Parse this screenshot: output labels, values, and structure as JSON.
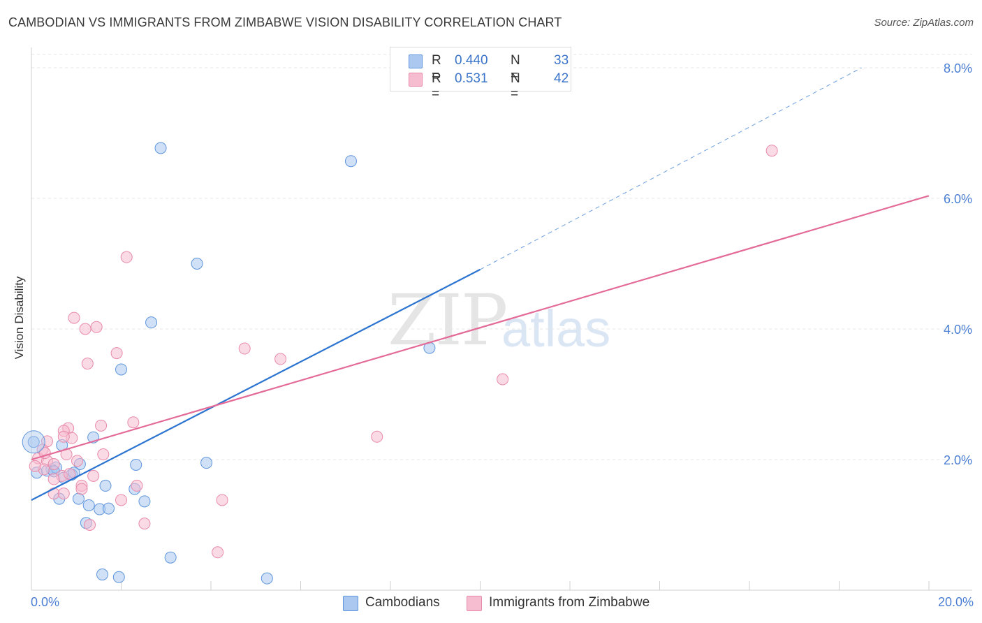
{
  "title": "CAMBODIAN VS IMMIGRANTS FROM ZIMBABWE VISION DISABILITY CORRELATION CHART",
  "source": "Source: ZipAtlas.com",
  "watermark": {
    "zip": "ZIP",
    "atlas": "atlas"
  },
  "legend": {
    "rows": [
      {
        "r_label": "R =",
        "r_value": "0.440",
        "n_label": "N =",
        "n_value": "33",
        "color": "#aac8f0"
      },
      {
        "r_label": "R =",
        "r_value": "0.531",
        "n_label": "N =",
        "n_value": "42",
        "color": "#f6bcd0"
      }
    ]
  },
  "bottom_legend": [
    "Cambodians",
    "Immigrants from Zimbabwe"
  ],
  "x_tick_labels": {
    "min": "0.0%",
    "max": "20.0%"
  },
  "chart_data": {
    "type": "scatter",
    "title": "CAMBODIAN VS IMMIGRANTS FROM ZIMBABWE VISION DISABILITY CORRELATION CHART",
    "xlabel": "",
    "ylabel": "Vision Disability",
    "xlim": [
      0,
      20
    ],
    "ylim": [
      0,
      8.0
    ],
    "y_ticks": [
      {
        "value": 2,
        "label": "2.0%"
      },
      {
        "value": 4,
        "label": "4.0%"
      },
      {
        "value": 6,
        "label": "6.0%"
      },
      {
        "value": 8,
        "label": "8.0%"
      }
    ],
    "grid": true,
    "legend_position": "top-center",
    "series": [
      {
        "name": "Cambodians",
        "color": "#aac8f0",
        "stroke": "#5f95dc",
        "trend_color": "#2b74d1",
        "trend": {
          "x0": 0,
          "y0": 1.38,
          "x1": 10,
          "y1": 4.91,
          "dashed_to_x": 18.5,
          "dashed_to_y": 8.0
        },
        "points": [
          [
            2.88,
            6.77
          ],
          [
            7.12,
            6.57
          ],
          [
            3.69,
            5.0
          ],
          [
            2.67,
            4.1
          ],
          [
            8.87,
            3.71
          ],
          [
            2.0,
            3.38
          ],
          [
            0.68,
            2.22
          ],
          [
            1.38,
            2.34
          ],
          [
            3.9,
            1.95
          ],
          [
            2.33,
            1.92
          ],
          [
            1.08,
            1.93
          ],
          [
            0.12,
            1.8
          ],
          [
            0.45,
            1.85
          ],
          [
            0.35,
            1.83
          ],
          [
            0.55,
            1.88
          ],
          [
            0.72,
            1.72
          ],
          [
            0.9,
            1.77
          ],
          [
            0.95,
            1.8
          ],
          [
            1.65,
            1.6
          ],
          [
            2.3,
            1.55
          ],
          [
            0.62,
            1.4
          ],
          [
            1.05,
            1.4
          ],
          [
            2.52,
            1.36
          ],
          [
            1.28,
            1.3
          ],
          [
            1.52,
            1.24
          ],
          [
            1.72,
            1.25
          ],
          [
            1.22,
            1.03
          ],
          [
            3.1,
            0.5
          ],
          [
            1.58,
            0.24
          ],
          [
            1.95,
            0.2
          ],
          [
            5.25,
            0.18
          ],
          [
            0.05,
            2.27
          ],
          [
            0.5,
            1.82
          ]
        ]
      },
      {
        "name": "Immigrants from Zimbabwe",
        "color": "#f6bcd0",
        "stroke": "#e98aab",
        "trend_color": "#e46b97",
        "trend": {
          "x0": 0,
          "y0": 2.0,
          "x1": 20,
          "y1": 6.04
        },
        "points": [
          [
            16.5,
            6.73
          ],
          [
            2.12,
            5.1
          ],
          [
            0.95,
            4.17
          ],
          [
            1.45,
            4.03
          ],
          [
            1.2,
            4.0
          ],
          [
            4.75,
            3.7
          ],
          [
            1.9,
            3.63
          ],
          [
            5.55,
            3.54
          ],
          [
            1.25,
            3.47
          ],
          [
            10.5,
            3.23
          ],
          [
            2.27,
            2.57
          ],
          [
            1.55,
            2.52
          ],
          [
            0.82,
            2.48
          ],
          [
            0.72,
            2.44
          ],
          [
            0.9,
            2.33
          ],
          [
            0.72,
            2.35
          ],
          [
            7.7,
            2.35
          ],
          [
            0.35,
            2.28
          ],
          [
            0.25,
            2.15
          ],
          [
            1.6,
            2.08
          ],
          [
            0.78,
            2.08
          ],
          [
            0.15,
            2.02
          ],
          [
            0.35,
            1.98
          ],
          [
            0.5,
            1.93
          ],
          [
            1.02,
            1.98
          ],
          [
            0.28,
            1.85
          ],
          [
            0.68,
            1.75
          ],
          [
            1.38,
            1.75
          ],
          [
            0.85,
            1.78
          ],
          [
            0.5,
            1.7
          ],
          [
            2.35,
            1.6
          ],
          [
            1.12,
            1.6
          ],
          [
            1.12,
            1.55
          ],
          [
            0.5,
            1.48
          ],
          [
            0.72,
            1.48
          ],
          [
            2.0,
            1.38
          ],
          [
            4.25,
            1.38
          ],
          [
            2.52,
            1.02
          ],
          [
            1.3,
            1.0
          ],
          [
            4.15,
            0.58
          ],
          [
            0.08,
            1.9
          ],
          [
            0.3,
            2.1
          ]
        ]
      }
    ]
  }
}
